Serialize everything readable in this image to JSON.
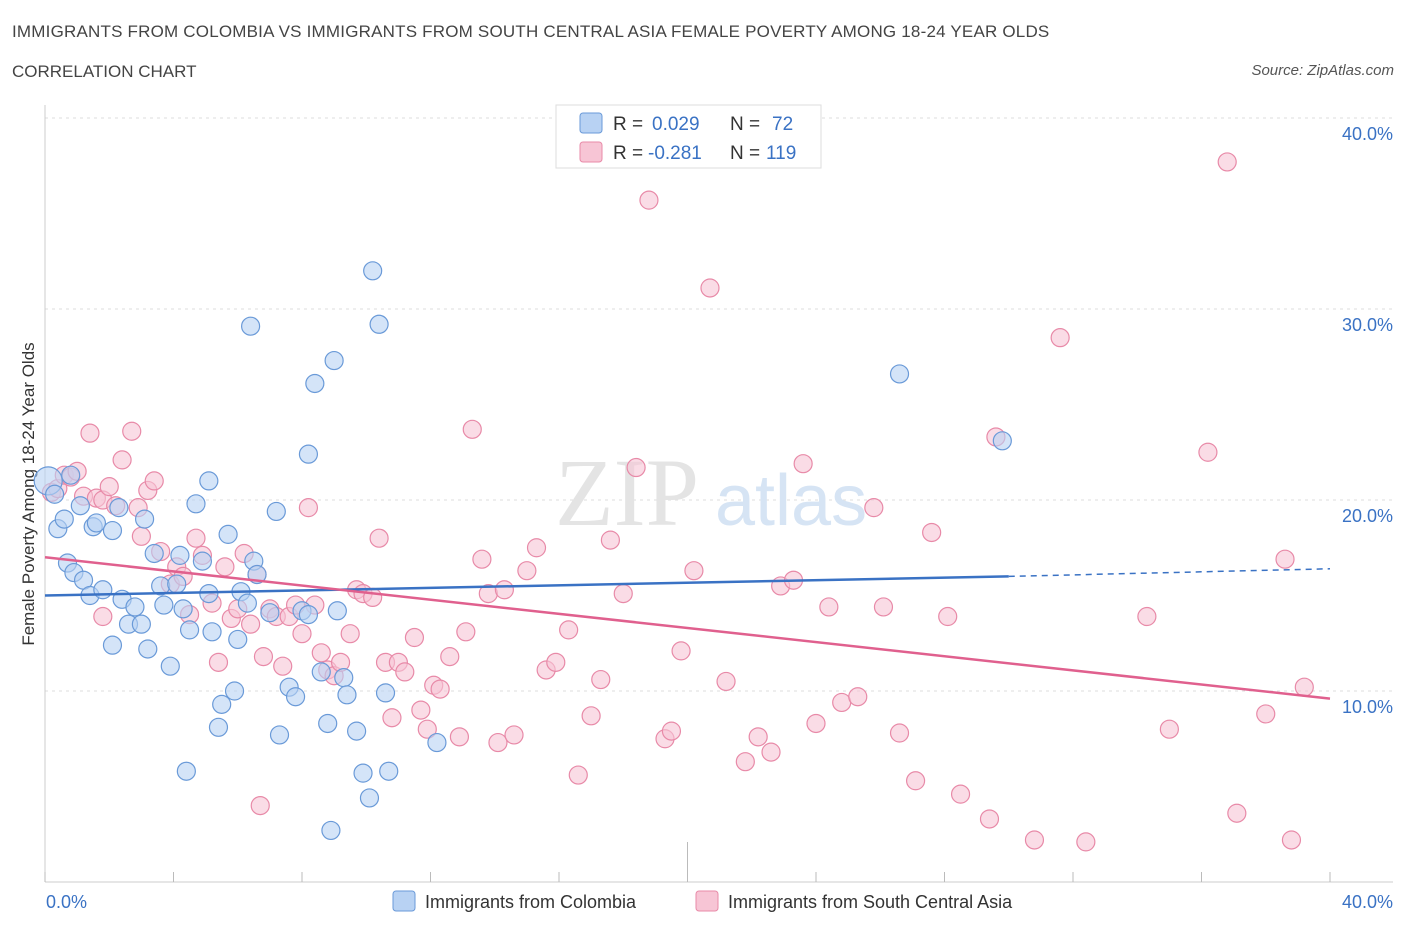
{
  "header": {
    "title": "IMMIGRANTS FROM COLOMBIA VS IMMIGRANTS FROM SOUTH CENTRAL ASIA FEMALE POVERTY AMONG 18-24 YEAR OLDS",
    "subtitle": "CORRELATION CHART",
    "source": "Source: ZipAtlas.com"
  },
  "watermark": {
    "zip": "ZIP",
    "atlas": "atlas"
  },
  "legend": {
    "colombia": {
      "r_label": "R =",
      "r_value": "0.029",
      "n_label": "N =",
      "n_value": "72"
    },
    "asia": {
      "r_label": "R =",
      "r_value": "-0.281",
      "n_label": "N =",
      "n_value": "119"
    }
  },
  "colors": {
    "colombia_fill": "#b8d2f3",
    "colombia_stroke": "#6a9ad8",
    "colombia_line": "#3a72c4",
    "asia_fill": "#f7c5d5",
    "asia_stroke": "#e88aa8",
    "asia_line": "#e0608e",
    "axis_text": "#3a72c4",
    "grid": "#dddddd"
  },
  "chart_data": {
    "type": "scatter",
    "title": "IMMIGRANTS FROM COLOMBIA VS IMMIGRANTS FROM SOUTH CENTRAL ASIA FEMALE POVERTY AMONG 18-24 YEAR OLDS",
    "xlabel": "",
    "ylabel": "Female Poverty Among 18-24 Year Olds",
    "xlim": [
      0,
      40
    ],
    "ylim": [
      0,
      40
    ],
    "x_tick_labels": [
      "0.0%",
      "40.0%"
    ],
    "y_ticks": [
      10,
      20,
      30,
      40
    ],
    "y_tick_labels": [
      "10.0%",
      "20.0%",
      "30.0%",
      "40.0%"
    ],
    "grid": true,
    "legend_position": "top-center",
    "series": [
      {
        "name": "Immigrants from Colombia",
        "r": 0.029,
        "n": 72,
        "trend": {
          "x0": 0,
          "y0": 15.0,
          "x1": 30.0,
          "y1": 16.0,
          "dashed_to_x": 40,
          "dashed_to_y": 16.4
        },
        "points": [
          [
            0.1,
            21.0
          ],
          [
            0.3,
            20.3
          ],
          [
            0.4,
            18.5
          ],
          [
            0.6,
            19.0
          ],
          [
            0.7,
            16.7
          ],
          [
            0.8,
            21.3
          ],
          [
            0.9,
            16.2
          ],
          [
            1.1,
            19.7
          ],
          [
            1.2,
            15.8
          ],
          [
            1.4,
            15.0
          ],
          [
            1.5,
            18.6
          ],
          [
            1.6,
            18.8
          ],
          [
            1.8,
            15.3
          ],
          [
            2.1,
            18.4
          ],
          [
            2.3,
            19.6
          ],
          [
            2.4,
            14.8
          ],
          [
            2.6,
            13.5
          ],
          [
            2.8,
            14.4
          ],
          [
            2.1,
            12.4
          ],
          [
            3.0,
            13.5
          ],
          [
            3.1,
            19.0
          ],
          [
            3.2,
            12.2
          ],
          [
            3.4,
            17.2
          ],
          [
            3.6,
            15.5
          ],
          [
            3.7,
            14.5
          ],
          [
            3.9,
            11.3
          ],
          [
            4.1,
            15.6
          ],
          [
            4.2,
            17.1
          ],
          [
            4.3,
            14.3
          ],
          [
            4.5,
            13.2
          ],
          [
            4.7,
            19.8
          ],
          [
            4.9,
            16.8
          ],
          [
            5.1,
            21.0
          ],
          [
            5.2,
            13.1
          ],
          [
            5.4,
            8.1
          ],
          [
            5.5,
            9.3
          ],
          [
            5.7,
            18.2
          ],
          [
            5.9,
            10.0
          ],
          [
            6.0,
            12.7
          ],
          [
            6.1,
            15.2
          ],
          [
            6.3,
            14.6
          ],
          [
            6.4,
            29.1
          ],
          [
            6.5,
            16.8
          ],
          [
            6.6,
            16.1
          ],
          [
            7.0,
            14.1
          ],
          [
            7.2,
            19.4
          ],
          [
            7.3,
            7.7
          ],
          [
            7.6,
            10.2
          ],
          [
            7.8,
            9.7
          ],
          [
            8.0,
            14.2
          ],
          [
            8.2,
            22.4
          ],
          [
            8.4,
            26.1
          ],
          [
            8.6,
            11.0
          ],
          [
            8.8,
            8.3
          ],
          [
            9.0,
            27.3
          ],
          [
            9.1,
            14.2
          ],
          [
            9.3,
            10.7
          ],
          [
            9.4,
            9.8
          ],
          [
            9.7,
            7.9
          ],
          [
            9.9,
            5.7
          ],
          [
            10.2,
            32.0
          ],
          [
            10.4,
            29.2
          ],
          [
            10.6,
            9.9
          ],
          [
            10.7,
            5.8
          ],
          [
            12.2,
            7.3
          ],
          [
            8.9,
            2.7
          ],
          [
            4.4,
            5.8
          ],
          [
            10.1,
            4.4
          ],
          [
            8.2,
            14.0
          ],
          [
            5.1,
            15.1
          ],
          [
            26.6,
            26.6
          ],
          [
            29.8,
            23.1
          ]
        ]
      },
      {
        "name": "Immigrants from South Central Asia",
        "r": -0.281,
        "n": 119,
        "trend": {
          "x0": 0,
          "y0": 17.0,
          "x1": 40,
          "y1": 9.6
        },
        "points": [
          [
            0.2,
            20.4
          ],
          [
            0.4,
            20.6
          ],
          [
            0.6,
            21.3
          ],
          [
            0.8,
            21.2
          ],
          [
            1.0,
            21.5
          ],
          [
            1.2,
            20.2
          ],
          [
            1.4,
            23.5
          ],
          [
            1.6,
            20.1
          ],
          [
            1.8,
            20.0
          ],
          [
            2.0,
            20.7
          ],
          [
            2.2,
            19.7
          ],
          [
            2.4,
            22.1
          ],
          [
            2.7,
            23.6
          ],
          [
            3.0,
            18.1
          ],
          [
            3.2,
            20.5
          ],
          [
            3.4,
            21.0
          ],
          [
            3.6,
            17.3
          ],
          [
            3.9,
            15.6
          ],
          [
            4.1,
            16.5
          ],
          [
            4.3,
            16.0
          ],
          [
            4.5,
            14.0
          ],
          [
            4.7,
            18.0
          ],
          [
            4.9,
            17.1
          ],
          [
            5.2,
            14.6
          ],
          [
            5.4,
            11.5
          ],
          [
            5.6,
            16.5
          ],
          [
            5.8,
            13.8
          ],
          [
            6.0,
            14.3
          ],
          [
            6.2,
            17.2
          ],
          [
            6.4,
            13.5
          ],
          [
            6.6,
            16.1
          ],
          [
            6.8,
            11.8
          ],
          [
            7.0,
            14.3
          ],
          [
            7.2,
            13.9
          ],
          [
            7.4,
            11.3
          ],
          [
            7.6,
            13.9
          ],
          [
            7.8,
            14.5
          ],
          [
            8.0,
            13.0
          ],
          [
            8.2,
            19.6
          ],
          [
            8.4,
            14.5
          ],
          [
            8.6,
            12.0
          ],
          [
            8.8,
            11.1
          ],
          [
            9.0,
            10.8
          ],
          [
            9.2,
            11.5
          ],
          [
            9.5,
            13.0
          ],
          [
            9.7,
            15.3
          ],
          [
            9.9,
            15.1
          ],
          [
            10.2,
            14.9
          ],
          [
            10.4,
            18.0
          ],
          [
            10.6,
            11.5
          ],
          [
            10.8,
            8.6
          ],
          [
            11.0,
            11.5
          ],
          [
            11.2,
            11.0
          ],
          [
            11.5,
            12.8
          ],
          [
            11.7,
            9.0
          ],
          [
            11.9,
            8.0
          ],
          [
            12.1,
            10.3
          ],
          [
            12.3,
            10.1
          ],
          [
            12.6,
            11.8
          ],
          [
            12.9,
            7.6
          ],
          [
            13.1,
            13.1
          ],
          [
            13.3,
            23.7
          ],
          [
            13.6,
            16.9
          ],
          [
            13.8,
            15.1
          ],
          [
            14.1,
            7.3
          ],
          [
            14.3,
            15.3
          ],
          [
            14.6,
            7.7
          ],
          [
            15.0,
            16.3
          ],
          [
            15.3,
            17.5
          ],
          [
            15.6,
            11.1
          ],
          [
            15.9,
            11.5
          ],
          [
            16.3,
            13.2
          ],
          [
            16.6,
            5.6
          ],
          [
            17.0,
            8.7
          ],
          [
            17.3,
            10.6
          ],
          [
            17.6,
            17.9
          ],
          [
            18.0,
            15.1
          ],
          [
            18.4,
            21.7
          ],
          [
            18.8,
            35.7
          ],
          [
            19.3,
            7.5
          ],
          [
            19.5,
            7.9
          ],
          [
            19.8,
            12.1
          ],
          [
            20.2,
            16.3
          ],
          [
            20.7,
            31.1
          ],
          [
            21.2,
            10.5
          ],
          [
            21.8,
            6.3
          ],
          [
            22.2,
            7.6
          ],
          [
            22.6,
            6.8
          ],
          [
            22.9,
            15.5
          ],
          [
            23.3,
            15.8
          ],
          [
            23.6,
            21.9
          ],
          [
            24.0,
            8.3
          ],
          [
            24.4,
            14.4
          ],
          [
            24.8,
            9.4
          ],
          [
            25.3,
            9.7
          ],
          [
            25.8,
            19.6
          ],
          [
            26.1,
            14.4
          ],
          [
            26.6,
            7.8
          ],
          [
            27.1,
            5.3
          ],
          [
            27.6,
            18.3
          ],
          [
            28.1,
            13.9
          ],
          [
            28.5,
            4.6
          ],
          [
            29.4,
            3.3
          ],
          [
            29.6,
            23.3
          ],
          [
            30.8,
            2.2
          ],
          [
            31.6,
            28.5
          ],
          [
            32.4,
            2.1
          ],
          [
            34.3,
            13.9
          ],
          [
            35.0,
            8.0
          ],
          [
            36.2,
            22.5
          ],
          [
            36.8,
            37.7
          ],
          [
            37.1,
            3.6
          ],
          [
            38.0,
            8.8
          ],
          [
            38.6,
            16.9
          ],
          [
            38.8,
            2.2
          ],
          [
            39.2,
            10.2
          ],
          [
            2.9,
            19.6
          ],
          [
            1.8,
            13.9
          ],
          [
            6.7,
            4.0
          ]
        ]
      }
    ]
  },
  "bottom_legend": {
    "colombia_label": "Immigrants from Colombia",
    "asia_label": "Immigrants from South Central Asia"
  }
}
